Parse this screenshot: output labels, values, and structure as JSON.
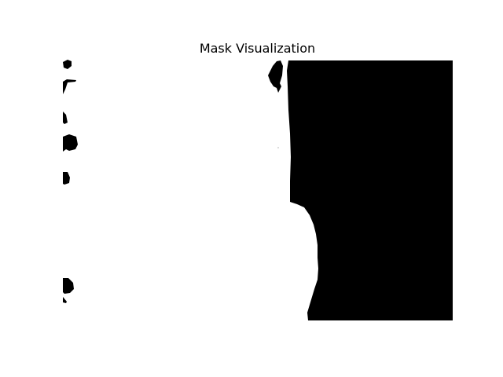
{
  "figure": {
    "title": "Mask Visualization"
  },
  "image": {
    "description_kind": "binary-mask",
    "foreground_color": "#000000",
    "background_color": "#ffffff"
  }
}
